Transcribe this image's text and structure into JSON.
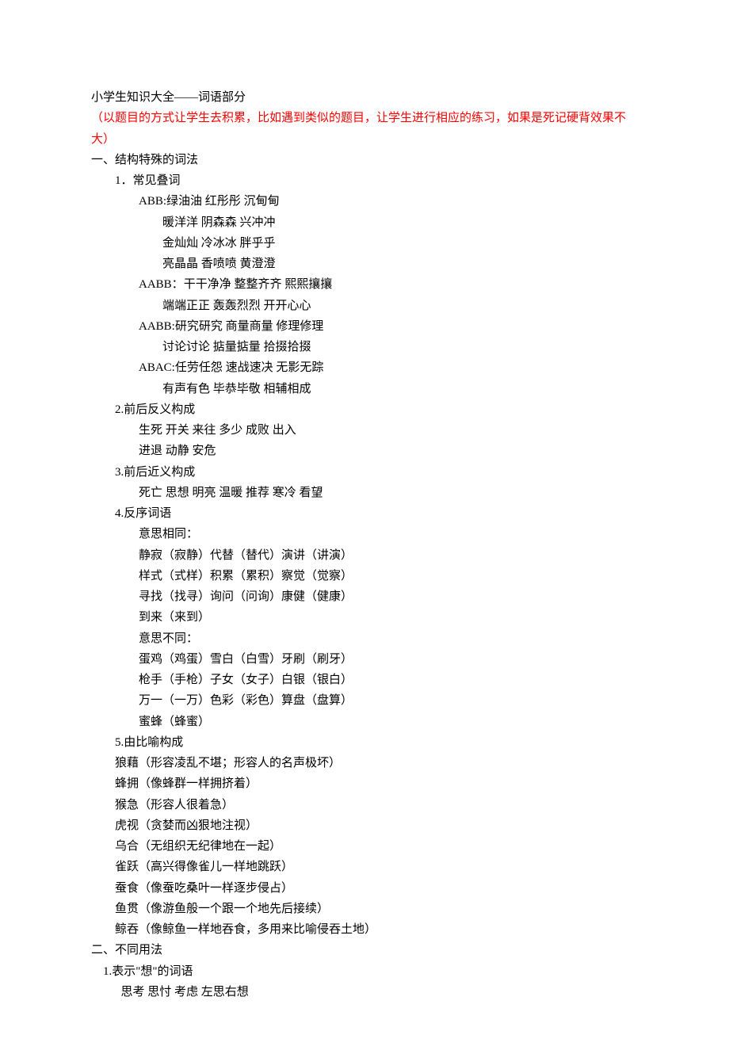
{
  "text_color": "#000000",
  "highlight_color": "#ff0000",
  "background_color": "#ffffff",
  "font_family": "SimSun",
  "font_size_pt": 11,
  "line_height": 1.75,
  "title": "小学生知识大全——词语部分",
  "note_open": "（",
  "note_body": "以题目的方式让学生去积累，比如遇到类似的题目，让学生进行相应的练习，如果是死记硬背效果不大",
  "note_close": "）",
  "sec1": {
    "heading": "一、结构特殊的词法",
    "s1": {
      "heading": "1．常见叠词",
      "abb_label": "ABB:",
      "abb_lines": [
        "绿油油 红彤彤 沉甸甸",
        "暖洋洋 阴森森 兴冲冲",
        "金灿灿 冷冰冰 胖乎乎",
        "亮晶晶 香喷喷 黄澄澄"
      ],
      "aabb1_label": "AABB：",
      "aabb1_lines": [
        "干干净净 整整齐齐 熙熙攘攘",
        "端端正正 轰轰烈烈 开开心心"
      ],
      "aabb2_label": "AABB:",
      "aabb2_lines": [
        "研究研究 商量商量 修理修理",
        "讨论讨论 掂量掂量 拾掇拾掇"
      ],
      "abac_label": "ABAC:",
      "abac_lines": [
        "任劳任怨 速战速决 无影无踪",
        "有声有色 毕恭毕敬 相辅相成"
      ]
    },
    "s2": {
      "heading": "2.前后反义构成",
      "lines": [
        "生死 开关 来往 多少 成败 出入",
        "进退 动静 安危"
      ]
    },
    "s3": {
      "heading": "3.前后近义构成",
      "lines": [
        "死亡 思想 明亮 温暖 推荐 寒冷 看望"
      ]
    },
    "s4": {
      "heading": "4.反序词语",
      "same_heading": "意思相同：",
      "same_lines": [
        "静寂（寂静）代替（替代）演讲（讲演）",
        "样式（式样）积累（累积）察觉（觉察）",
        "寻找（找寻）询问（问询）康健（健康）",
        "到来（来到）"
      ],
      "diff_heading": "意思不同：",
      "diff_lines": [
        "蛋鸡（鸡蛋）雪白（白雪）牙刷（刷牙）",
        "枪手（手枪）子女（女子）白银（银白）",
        "万一（一万）色彩（彩色）算盘（盘算）",
        "蜜蜂（蜂蜜）"
      ]
    },
    "s5": {
      "heading": "5.由比喻构成",
      "lines": [
        "狼藉（形容凌乱不堪；形容人的名声极坏）",
        "蜂拥（像蜂群一样拥挤着）",
        "猴急（形容人很着急）",
        "虎视（贪婪而凶狠地注视）",
        "乌合（无组织无纪律地在一起）",
        "雀跃（高兴得像雀儿一样地跳跃）",
        "蚕食（像蚕吃桑叶一样逐步侵占）",
        "鱼贯（像游鱼般一个跟一个地先后接续）",
        "鲸吞（像鲸鱼一样地吞食，多用来比喻侵吞土地）"
      ]
    }
  },
  "sec2": {
    "heading": "二、不同用法",
    "s1": {
      "heading": "1.表示\"想\"的词语",
      "line": "思考 思忖 考虑 左思右想"
    }
  }
}
